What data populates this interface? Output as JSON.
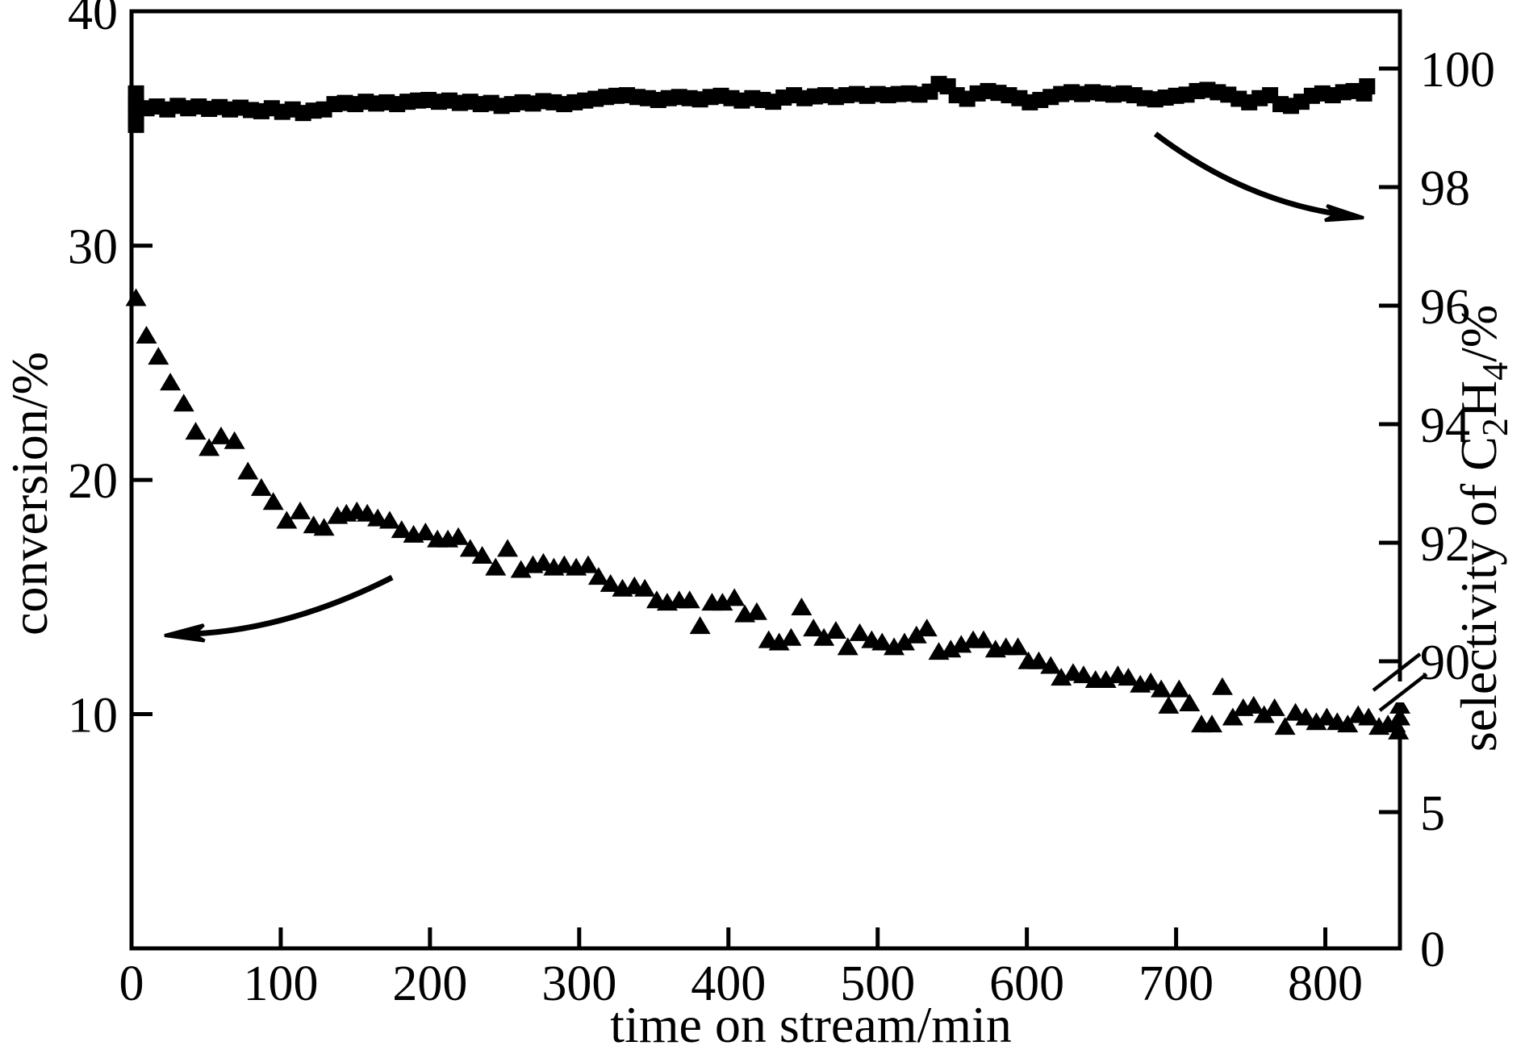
{
  "figure": {
    "background": "#ffffff",
    "foreground": "#000000"
  },
  "chart_data": {
    "type": "scatter",
    "title": "",
    "x_axis": {
      "label": "time on stream/min",
      "min": 0,
      "max": 850,
      "ticks": [
        0,
        100,
        200,
        300,
        400,
        500,
        600,
        700,
        800
      ]
    },
    "y_axis_left": {
      "label": "conversion/%",
      "min": 0,
      "max": 40,
      "ticks": [
        10,
        20,
        30,
        40
      ]
    },
    "y_axis_right": {
      "label_plain": "selectivity of C2H4/%",
      "label_parts": [
        {
          "text": "selectivity of C"
        },
        {
          "text": "2",
          "sub": true
        },
        {
          "text": "H"
        },
        {
          "text": "4",
          "sub": true
        },
        {
          "text": "/%"
        }
      ],
      "upper_ticks": [
        100,
        98,
        96,
        94,
        92,
        90
      ],
      "lower_ticks": [
        5,
        0
      ],
      "axis_break_between": [
        10,
        90
      ]
    },
    "legend": "none",
    "grid": "off",
    "series": [
      {
        "name": "selectivity of C2H4",
        "marker": "square",
        "axis": "right",
        "points": [
          [
            3,
            99.58
          ],
          [
            3,
            99.4
          ],
          [
            3,
            99.22
          ],
          [
            3,
            99.05
          ],
          [
            10,
            99.33
          ],
          [
            17,
            99.36
          ],
          [
            24,
            99.31
          ],
          [
            31,
            99.37
          ],
          [
            38,
            99.33
          ],
          [
            45,
            99.36
          ],
          [
            52,
            99.32
          ],
          [
            59,
            99.35
          ],
          [
            66,
            99.31
          ],
          [
            73,
            99.34
          ],
          [
            80,
            99.3
          ],
          [
            87,
            99.28
          ],
          [
            94,
            99.33
          ],
          [
            101,
            99.27
          ],
          [
            108,
            99.31
          ],
          [
            115,
            99.25
          ],
          [
            122,
            99.29
          ],
          [
            129,
            99.31
          ],
          [
            136,
            99.4
          ],
          [
            143,
            99.42
          ],
          [
            150,
            99.4
          ],
          [
            157,
            99.44
          ],
          [
            164,
            99.41
          ],
          [
            171,
            99.43
          ],
          [
            178,
            99.4
          ],
          [
            185,
            99.44
          ],
          [
            192,
            99.46
          ],
          [
            199,
            99.47
          ],
          [
            206,
            99.44
          ],
          [
            213,
            99.46
          ],
          [
            220,
            99.42
          ],
          [
            227,
            99.44
          ],
          [
            234,
            99.4
          ],
          [
            241,
            99.42
          ],
          [
            248,
            99.37
          ],
          [
            255,
            99.4
          ],
          [
            262,
            99.43
          ],
          [
            269,
            99.41
          ],
          [
            276,
            99.45
          ],
          [
            283,
            99.43
          ],
          [
            290,
            99.4
          ],
          [
            297,
            99.43
          ],
          [
            304,
            99.46
          ],
          [
            311,
            99.49
          ],
          [
            318,
            99.52
          ],
          [
            325,
            99.54
          ],
          [
            332,
            99.55
          ],
          [
            339,
            99.52
          ],
          [
            346,
            99.5
          ],
          [
            353,
            99.47
          ],
          [
            360,
            99.5
          ],
          [
            367,
            99.52
          ],
          [
            374,
            99.5
          ],
          [
            381,
            99.48
          ],
          [
            388,
            99.52
          ],
          [
            395,
            99.54
          ],
          [
            402,
            99.5
          ],
          [
            409,
            99.46
          ],
          [
            416,
            99.5
          ],
          [
            423,
            99.47
          ],
          [
            430,
            99.44
          ],
          [
            437,
            99.51
          ],
          [
            444,
            99.55
          ],
          [
            451,
            99.5
          ],
          [
            458,
            99.53
          ],
          [
            465,
            99.55
          ],
          [
            472,
            99.52
          ],
          [
            479,
            99.55
          ],
          [
            486,
            99.57
          ],
          [
            493,
            99.54
          ],
          [
            500,
            99.57
          ],
          [
            507,
            99.55
          ],
          [
            514,
            99.57
          ],
          [
            521,
            99.58
          ],
          [
            528,
            99.56
          ],
          [
            535,
            99.61
          ],
          [
            541,
            99.74
          ],
          [
            547,
            99.7
          ],
          [
            553,
            99.55
          ],
          [
            560,
            99.49
          ],
          [
            567,
            99.58
          ],
          [
            574,
            99.62
          ],
          [
            581,
            99.59
          ],
          [
            588,
            99.55
          ],
          [
            595,
            99.5
          ],
          [
            602,
            99.43
          ],
          [
            609,
            99.47
          ],
          [
            616,
            99.52
          ],
          [
            623,
            99.57
          ],
          [
            630,
            99.6
          ],
          [
            637,
            99.57
          ],
          [
            644,
            99.6
          ],
          [
            651,
            99.58
          ],
          [
            658,
            99.56
          ],
          [
            665,
            99.58
          ],
          [
            672,
            99.55
          ],
          [
            679,
            99.5
          ],
          [
            686,
            99.48
          ],
          [
            693,
            99.51
          ],
          [
            700,
            99.54
          ],
          [
            707,
            99.56
          ],
          [
            714,
            99.62
          ],
          [
            721,
            99.64
          ],
          [
            728,
            99.6
          ],
          [
            735,
            99.56
          ],
          [
            742,
            99.49
          ],
          [
            749,
            99.43
          ],
          [
            756,
            99.5
          ],
          [
            763,
            99.55
          ],
          [
            770,
            99.4
          ],
          [
            777,
            99.37
          ],
          [
            784,
            99.44
          ],
          [
            791,
            99.54
          ],
          [
            798,
            99.58
          ],
          [
            805,
            99.55
          ],
          [
            812,
            99.6
          ],
          [
            819,
            99.62
          ],
          [
            826,
            99.58
          ],
          [
            828,
            99.7
          ]
        ]
      },
      {
        "name": "conversion",
        "marker": "triangle",
        "axis": "left",
        "points": [
          [
            3,
            27.8
          ],
          [
            10,
            26.2
          ],
          [
            18,
            25.3
          ],
          [
            26,
            24.2
          ],
          [
            35,
            23.3
          ],
          [
            43,
            22.1
          ],
          [
            52,
            21.4
          ],
          [
            60,
            21.9
          ],
          [
            69,
            21.7
          ],
          [
            78,
            20.4
          ],
          [
            87,
            19.7
          ],
          [
            95,
            19.1
          ],
          [
            104,
            18.3
          ],
          [
            113,
            18.7
          ],
          [
            122,
            18.1
          ],
          [
            129,
            18.0
          ],
          [
            138,
            18.5
          ],
          [
            144,
            18.6
          ],
          [
            151,
            18.7
          ],
          [
            158,
            18.6
          ],
          [
            165,
            18.4
          ],
          [
            173,
            18.3
          ],
          [
            181,
            17.9
          ],
          [
            189,
            17.7
          ],
          [
            197,
            17.8
          ],
          [
            205,
            17.5
          ],
          [
            212,
            17.5
          ],
          [
            219,
            17.6
          ],
          [
            227,
            17.1
          ],
          [
            235,
            16.8
          ],
          [
            244,
            16.3
          ],
          [
            252,
            17.1
          ],
          [
            261,
            16.2
          ],
          [
            269,
            16.4
          ],
          [
            276,
            16.5
          ],
          [
            283,
            16.3
          ],
          [
            290,
            16.4
          ],
          [
            298,
            16.3
          ],
          [
            306,
            16.4
          ],
          [
            313,
            15.9
          ],
          [
            321,
            15.6
          ],
          [
            329,
            15.4
          ],
          [
            337,
            15.5
          ],
          [
            344,
            15.4
          ],
          [
            352,
            14.9
          ],
          [
            359,
            14.8
          ],
          [
            367,
            14.9
          ],
          [
            374,
            14.9
          ],
          [
            381,
            13.8
          ],
          [
            389,
            14.8
          ],
          [
            396,
            14.8
          ],
          [
            404,
            15.0
          ],
          [
            411,
            14.3
          ],
          [
            419,
            14.4
          ],
          [
            427,
            13.2
          ],
          [
            434,
            13.1
          ],
          [
            442,
            13.3
          ],
          [
            449,
            14.6
          ],
          [
            457,
            13.7
          ],
          [
            464,
            13.3
          ],
          [
            472,
            13.6
          ],
          [
            480,
            12.9
          ],
          [
            488,
            13.5
          ],
          [
            496,
            13.2
          ],
          [
            503,
            13.1
          ],
          [
            511,
            12.9
          ],
          [
            518,
            13.1
          ],
          [
            526,
            13.4
          ],
          [
            533,
            13.7
          ],
          [
            541,
            12.7
          ],
          [
            549,
            12.8
          ],
          [
            556,
            13.0
          ],
          [
            564,
            13.2
          ],
          [
            571,
            13.2
          ],
          [
            579,
            12.8
          ],
          [
            586,
            12.9
          ],
          [
            594,
            12.9
          ],
          [
            601,
            12.3
          ],
          [
            608,
            12.3
          ],
          [
            616,
            12.1
          ],
          [
            623,
            11.6
          ],
          [
            631,
            11.8
          ],
          [
            638,
            11.7
          ],
          [
            646,
            11.5
          ],
          [
            653,
            11.5
          ],
          [
            661,
            11.7
          ],
          [
            668,
            11.6
          ],
          [
            676,
            11.3
          ],
          [
            683,
            11.4
          ],
          [
            690,
            11.1
          ],
          [
            695,
            10.4
          ],
          [
            702,
            11.1
          ],
          [
            709,
            10.5
          ],
          [
            717,
            9.6
          ],
          [
            724,
            9.6
          ],
          [
            731,
            11.2
          ],
          [
            738,
            9.9
          ],
          [
            745,
            10.3
          ],
          [
            752,
            10.4
          ],
          [
            759,
            10.0
          ],
          [
            766,
            10.3
          ],
          [
            773,
            9.5
          ],
          [
            780,
            10.1
          ],
          [
            787,
            9.9
          ],
          [
            794,
            9.7
          ],
          [
            801,
            9.9
          ],
          [
            808,
            9.7
          ],
          [
            815,
            9.6
          ],
          [
            822,
            10.0
          ],
          [
            829,
            9.9
          ],
          [
            836,
            9.5
          ],
          [
            842,
            9.6
          ],
          [
            847,
            9.6
          ],
          [
            849,
            9.3
          ],
          [
            850,
            9.9
          ],
          [
            850,
            10.4
          ]
        ]
      }
    ],
    "annotations": {
      "arrows": [
        {
          "name": "conversion-points-to-left-axis",
          "direction": "left"
        },
        {
          "name": "selectivity-points-to-right-axis",
          "direction": "right"
        }
      ]
    }
  }
}
